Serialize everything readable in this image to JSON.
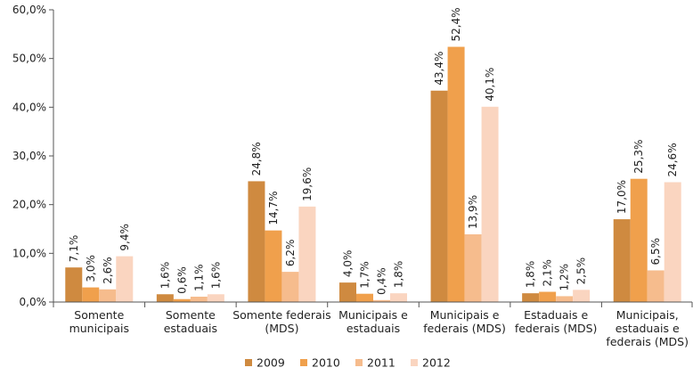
{
  "chart_data": {
    "type": "bar",
    "categories": [
      [
        "Somente",
        "municipais"
      ],
      [
        "Somente",
        "estaduais"
      ],
      [
        "Somente federais",
        "(MDS)"
      ],
      [
        "Municipais e",
        "estaduais"
      ],
      [
        "Municipais e",
        "federais (MDS)"
      ],
      [
        "Estaduais e",
        "federais (MDS)"
      ],
      [
        "Municipais,",
        "estaduais e",
        "federais (MDS)"
      ]
    ],
    "series": [
      {
        "name": "2009",
        "color": "#CF8A40",
        "values": [
          7.1,
          1.6,
          24.8,
          4.0,
          43.4,
          1.8,
          17.0
        ],
        "labels": [
          "7,1%",
          "1,6%",
          "24,8%",
          "4,0%",
          "43,4%",
          "1,8%",
          "17,0%"
        ]
      },
      {
        "name": "2010",
        "color": "#F0A04C",
        "values": [
          3.0,
          0.6,
          14.7,
          1.7,
          52.4,
          2.1,
          25.3
        ],
        "labels": [
          "3,0%",
          "0,6%",
          "14,7%",
          "1,7%",
          "52,4%",
          "2,1%",
          "25,3%"
        ]
      },
      {
        "name": "2011",
        "color": "#F6BC8D",
        "values": [
          2.6,
          1.1,
          6.2,
          0.4,
          13.9,
          1.2,
          6.5
        ],
        "labels": [
          "2,6%",
          "1,1%",
          "6,2%",
          "0,4%",
          "13,9%",
          "1,2%",
          "6,5%"
        ]
      },
      {
        "name": "2012",
        "color": "#FAD5C0",
        "values": [
          9.4,
          1.6,
          19.6,
          1.8,
          40.1,
          2.5,
          24.6
        ],
        "labels": [
          "9,4%",
          "1,6%",
          "19,6%",
          "1,8%",
          "40,1%",
          "2,5%",
          "24,6%"
        ]
      }
    ],
    "ylim": [
      0,
      60
    ],
    "yticks": [
      0,
      10,
      20,
      30,
      40,
      50,
      60
    ],
    "ytick_labels": [
      "0,0%",
      "10,0%",
      "20,0%",
      "30,0%",
      "40,0%",
      "50,0%",
      "60,0%"
    ],
    "grid": false,
    "legend": "bottom-center"
  }
}
